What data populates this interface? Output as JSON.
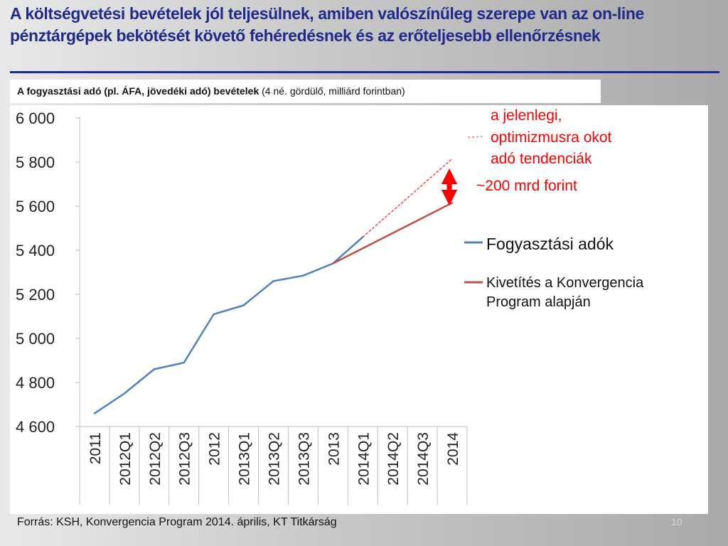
{
  "slide": {
    "title": "A költségvetési bevételek jól teljesülnek, amiben valószínűleg szerepe van az on-line pénztárgépek bekötését követő fehéredésnek és az erőteljesebb ellenőrzésnek",
    "subtitle_bold": "A  fogyasztási adó (pl. ÁFA, jövedéki adó) bevételek",
    "subtitle_normal": " (4 né. gördülő, milliárd forintban)",
    "source": "Forrás: KSH, Konvergencia Program 2014. április, KT Titkárság",
    "page_number": "10"
  },
  "colors": {
    "title": "#1f2a8c",
    "series_actual": "#4f81bd",
    "series_projection": "#c0504d",
    "annotation": "#ff0000"
  },
  "chart_data": {
    "type": "line",
    "categories": [
      "2011",
      "2012Q1",
      "2012Q2",
      "2012Q3",
      "2012",
      "2013Q1",
      "2013Q2",
      "2013Q3",
      "2013",
      "2014Q1",
      "2014Q2",
      "2014Q3",
      "2014"
    ],
    "ylim": [
      4600,
      6000
    ],
    "yticks": [
      4600,
      4800,
      5000,
      5200,
      5400,
      5600,
      5800,
      6000
    ],
    "ytick_labels": [
      "4 600",
      "4 800",
      "5 000",
      "5 200",
      "5 400",
      "5 600",
      "5 800",
      "6 000"
    ],
    "grid": false,
    "legend_position": "right",
    "series": [
      {
        "name": "Fogyasztási adók",
        "color": "#4f81bd",
        "style": "solid",
        "x": [
          "2011",
          "2012Q1",
          "2012Q2",
          "2012Q3",
          "2012",
          "2013Q1",
          "2013Q2",
          "2013Q3",
          "2013",
          "2014Q1"
        ],
        "values": [
          4660,
          4750,
          4860,
          4890,
          5110,
          5150,
          5260,
          5285,
          5340,
          5460
        ]
      },
      {
        "name": "Kivetítés a Konvergencia Program alapján",
        "color": "#c0504d",
        "style": "solid",
        "x": [
          "2013",
          "2014"
        ],
        "values": [
          5340,
          5615
        ]
      },
      {
        "color": "#ff3030",
        "style": "dashed",
        "x": [
          "2014Q1",
          "2014"
        ],
        "values": [
          5460,
          5815
        ]
      }
    ],
    "annotations": {
      "trend_note": [
        "a jelenlegi,",
        "optimizmusra okot",
        "adó tendenciák"
      ],
      "gap_label": "~200 mrd forint"
    }
  }
}
